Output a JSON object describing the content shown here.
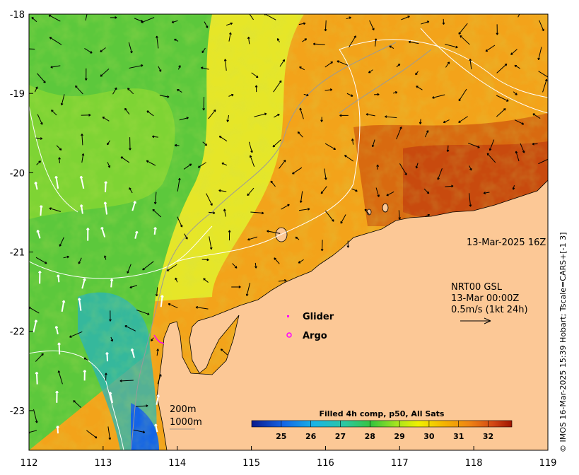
{
  "map": {
    "lon_ticks": [
      "112",
      "113",
      "114",
      "115",
      "116",
      "117",
      "118",
      "119"
    ],
    "lat_ticks": [
      "-18",
      "-19",
      "-20",
      "-21",
      "-22",
      "-23"
    ],
    "lon_range": [
      112,
      119
    ],
    "lat_range": [
      -23.5,
      -18
    ]
  },
  "annotations": {
    "date_label": "13-Mar-2025 16Z",
    "current_source": "NRT00 GSL",
    "current_time": "13-Mar 00:00Z",
    "current_scale": "0.5m/s (1kt 24h)",
    "legend_glider": "Glider",
    "legend_argo": "Argo",
    "contour_200": "200m",
    "contour_1000": "1000m"
  },
  "colorbar": {
    "title": "Filled 4h comp, p50, All Sats",
    "ticks": [
      "25",
      "26",
      "27",
      "28",
      "29",
      "30",
      "31",
      "32"
    ],
    "range": [
      24,
      32.8
    ]
  },
  "credit": "© IMOS 16-Mar-2025 15:39 Hobart; Tscale=CARS+[-1 3]",
  "colors": {
    "land": "#fcc896",
    "glider_marker": "#ff00ff",
    "argo_marker": "#ff00ff",
    "contour": "#ffffff",
    "coast_detail": "#9a9a9a"
  }
}
